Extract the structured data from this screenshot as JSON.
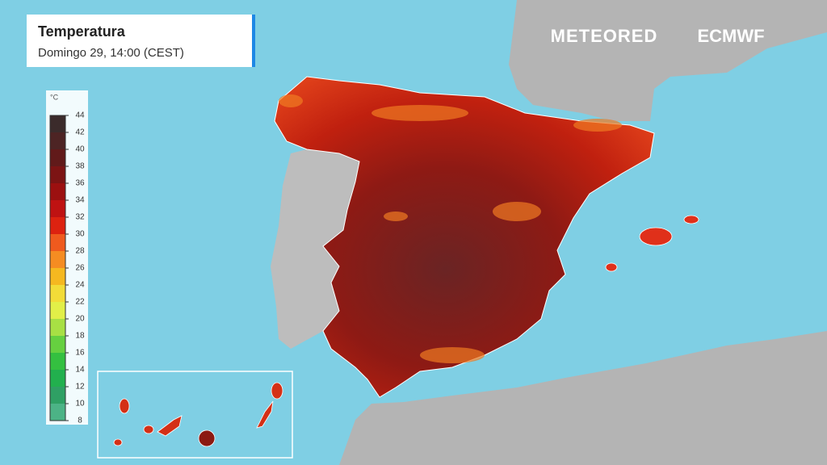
{
  "header": {
    "title": "Temperatura",
    "subtitle": "Domingo 29, 14:00 (CEST)"
  },
  "brands": {
    "left": "METEORED",
    "right": "ECMWF"
  },
  "legend": {
    "unit": "°C",
    "ticks": [
      44,
      42,
      40,
      38,
      36,
      34,
      32,
      30,
      28,
      26,
      24,
      22,
      20,
      18,
      16,
      14,
      12,
      10,
      8
    ],
    "colors": [
      "#3b2b2b",
      "#4d2424",
      "#611a1a",
      "#7c1414",
      "#9c1010",
      "#bf1212",
      "#dd2210",
      "#ef5a1e",
      "#f58c22",
      "#f5b820",
      "#f2dc38",
      "#e2ef48",
      "#a8e044",
      "#66d040",
      "#34c040",
      "#22b04e",
      "#2fa064",
      "#4cb386"
    ]
  }
}
